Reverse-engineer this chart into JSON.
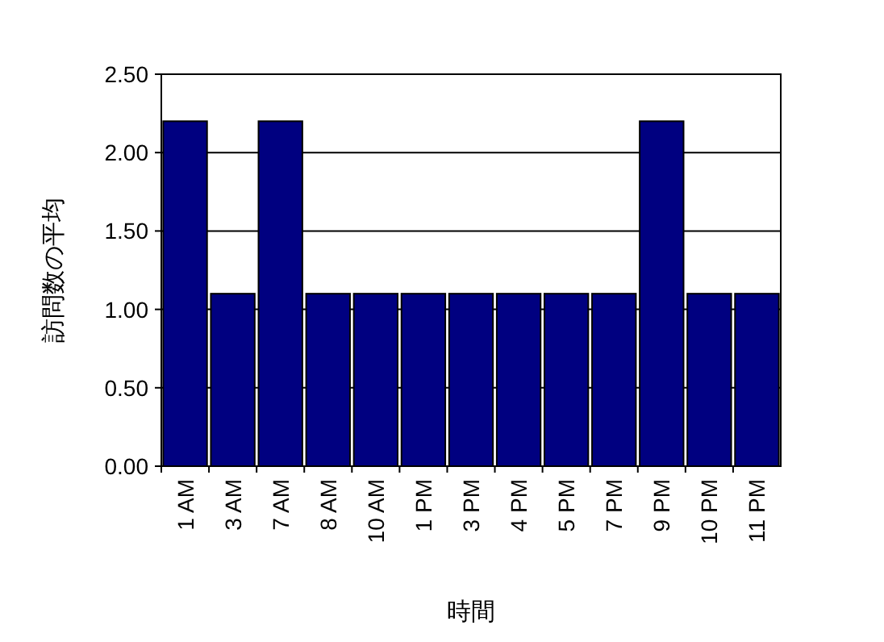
{
  "chart_data": {
    "type": "bar",
    "xlabel": "時間",
    "ylabel": "訪問数の平均",
    "categories": [
      "1 AM",
      "3 AM",
      "7 AM",
      "8 AM",
      "10 AM",
      "1 PM",
      "3 PM",
      "4 PM",
      "5 PM",
      "7 PM",
      "9 PM",
      "10 PM",
      "11 PM"
    ],
    "values": [
      2.2,
      1.1,
      2.2,
      1.1,
      1.1,
      1.1,
      1.1,
      1.1,
      1.1,
      1.1,
      2.2,
      1.1,
      1.1
    ],
    "color": "#000080",
    "ylim": [
      0,
      2.5
    ],
    "yticks": [
      {
        "value": 0,
        "label": "0.00"
      },
      {
        "value": 0.5,
        "label": "0.50"
      },
      {
        "value": 1,
        "label": "1.00"
      },
      {
        "value": 1.5,
        "label": "1.50"
      },
      {
        "value": 2,
        "label": "2.00"
      },
      {
        "value": 2.5,
        "label": "2.50"
      }
    ],
    "grid": "y"
  }
}
